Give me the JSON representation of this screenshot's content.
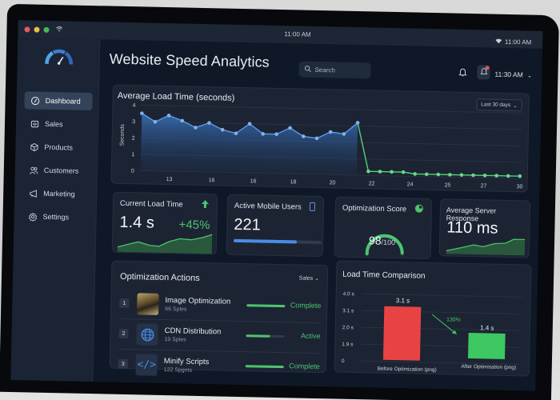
{
  "os_bar": {
    "clock": "11:00 AM",
    "right_time": "11:00 AM",
    "window_dots": [
      "#e5595a",
      "#e8c04a",
      "#48b85a"
    ]
  },
  "sidebar": {
    "logo": "speedometer-icon",
    "items": [
      {
        "label": "Dashboard",
        "icon": "gauge-icon",
        "active": true
      },
      {
        "label": "Sales",
        "icon": "wallet-icon",
        "active": false
      },
      {
        "label": "Products",
        "icon": "box-icon",
        "active": false
      },
      {
        "label": "Customers",
        "icon": "users-icon",
        "active": false
      },
      {
        "label": "Marketing",
        "icon": "megaphone-icon",
        "active": false
      },
      {
        "label": "Settings",
        "icon": "gear-icon",
        "active": false
      }
    ]
  },
  "header": {
    "title": "Website Speed Analytics",
    "search_placeholder": "Search",
    "time": "11:30 AM"
  },
  "load_chart": {
    "title": "Average Load Time (seconds)",
    "range_label": "Last 30 days",
    "ylabel": "Seconds",
    "y_ticks": [
      "4",
      "3",
      "2",
      "1",
      "0"
    ],
    "x_ticks": [
      "13",
      "16",
      "16",
      "18",
      "20",
      "22",
      "24",
      "25",
      "27",
      "30"
    ]
  },
  "chart_data": {
    "type": "line",
    "title": "Average Load Time (seconds)",
    "xlabel": "",
    "ylabel": "Seconds",
    "ylim": [
      0,
      4
    ],
    "grid": true,
    "x_tick_labels": [
      "13",
      "16",
      "16",
      "18",
      "20",
      "22",
      "24",
      "25",
      "27",
      "30"
    ],
    "series": [
      {
        "name": "Before optimization",
        "color": "#4a8ce6",
        "values": [
          3.5,
          3.0,
          3.4,
          3.1,
          2.7,
          3.0,
          2.6,
          2.4,
          3.0,
          2.4,
          2.4,
          2.8,
          2.3,
          2.2,
          2.6,
          2.5,
          3.2
        ]
      },
      {
        "name": "After optimization",
        "color": "#4cc46f",
        "values": [
          3.2,
          0.25,
          0.25,
          0.25,
          0.25,
          0.15,
          0.15,
          0.15,
          0.15,
          0.15,
          0.15,
          0.15,
          0.15,
          0.15,
          0.15
        ]
      }
    ]
  },
  "stats": {
    "current_load": {
      "label": "Current Load Time",
      "value": "1.4 s",
      "delta": "+45%"
    },
    "mobile_users": {
      "label": "Active Mobile Users",
      "value": "221",
      "progress": 72
    },
    "optimization": {
      "label": "Optimization Score",
      "value": "98",
      "max": "/100"
    },
    "server": {
      "label": "Average Server Response",
      "value": "110 ms"
    }
  },
  "actions": {
    "title": "Optimization Actions",
    "filter": "Sales",
    "items": [
      {
        "num": "1",
        "name": "Image Optimization",
        "sub": "66 Sples",
        "status": "Complete",
        "progress": 100,
        "icon": "image-thumbnail"
      },
      {
        "num": "2",
        "name": "CDN Distribution",
        "sub": "19 Sples",
        "status": "Active",
        "progress": 62,
        "icon": "globe-icon"
      },
      {
        "num": "3",
        "name": "Minify Scripts",
        "sub": "122 Spgnts",
        "status": "Complete",
        "progress": 100,
        "icon": "code-icon"
      }
    ]
  },
  "comparison": {
    "title": "Load Time Comparison",
    "y_ticks": [
      "4.0 s",
      "3.1 s",
      "2.0 s",
      "1.9 s",
      "0"
    ],
    "bars": [
      {
        "label": "Before Optimization (png)",
        "value": "3.1 s",
        "color": "#e84343"
      },
      {
        "label": "After Optimisation (png)",
        "value": "1.4 s",
        "color": "#3dc862"
      }
    ],
    "change": "130%"
  }
}
